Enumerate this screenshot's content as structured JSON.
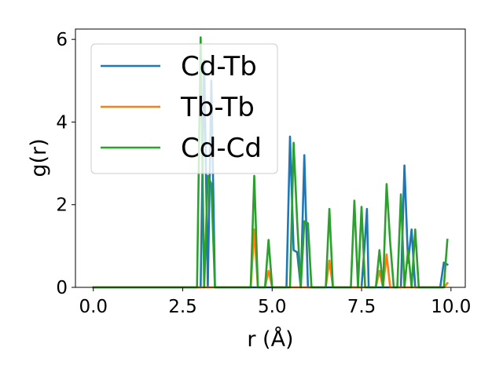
{
  "chart_data": {
    "type": "line",
    "title": "",
    "xlabel": "r (Å)",
    "ylabel": "g(r)",
    "xlim": [
      -0.5,
      10.4
    ],
    "ylim": [
      0,
      6.25
    ],
    "xticks": [
      0.0,
      2.5,
      5.0,
      7.5,
      10.0
    ],
    "xtick_labels": [
      "0.0",
      "2.5",
      "5.0",
      "7.5",
      "10.0"
    ],
    "yticks": [
      0,
      2,
      4,
      6
    ],
    "ytick_labels": [
      "0",
      "2",
      "4",
      "6"
    ],
    "grid": false,
    "legend": "top-left",
    "series": [
      {
        "name": "Cd-Tb",
        "color": "#1f77b4",
        "points": [
          [
            0.0,
            0.0
          ],
          [
            2.9,
            0.0
          ],
          [
            3.0,
            0.0
          ],
          [
            3.1,
            5.5
          ],
          [
            3.2,
            0.0
          ],
          [
            3.3,
            5.0
          ],
          [
            3.4,
            0.0
          ],
          [
            5.4,
            0.0
          ],
          [
            5.5,
            3.65
          ],
          [
            5.6,
            0.9
          ],
          [
            5.7,
            0.85
          ],
          [
            5.8,
            0.0
          ],
          [
            5.9,
            3.2
          ],
          [
            6.0,
            0.0
          ],
          [
            7.5,
            0.0
          ],
          [
            7.6,
            1.2
          ],
          [
            7.65,
            1.9
          ],
          [
            7.7,
            0.0
          ],
          [
            8.6,
            0.0
          ],
          [
            8.7,
            2.95
          ],
          [
            8.8,
            0.6
          ],
          [
            8.9,
            1.4
          ],
          [
            9.0,
            0.0
          ],
          [
            9.7,
            0.0
          ],
          [
            9.8,
            0.6
          ],
          [
            9.9,
            0.55
          ]
        ]
      },
      {
        "name": "Tb-Tb",
        "color": "#ff7f0e",
        "points": [
          [
            0.0,
            0.0
          ],
          [
            4.4,
            0.0
          ],
          [
            4.5,
            1.4
          ],
          [
            4.6,
            0.0
          ],
          [
            4.8,
            0.0
          ],
          [
            4.9,
            0.4
          ],
          [
            5.0,
            0.0
          ],
          [
            6.5,
            0.0
          ],
          [
            6.6,
            0.65
          ],
          [
            6.7,
            0.0
          ],
          [
            7.9,
            0.0
          ],
          [
            8.0,
            0.4
          ],
          [
            8.1,
            0.0
          ],
          [
            8.2,
            0.8
          ],
          [
            8.3,
            0.0
          ],
          [
            9.8,
            0.0
          ],
          [
            9.9,
            0.1
          ]
        ]
      },
      {
        "name": "Cd-Cd",
        "color": "#2ca02c",
        "points": [
          [
            0.0,
            0.0
          ],
          [
            2.9,
            0.0
          ],
          [
            3.0,
            6.05
          ],
          [
            3.1,
            0.0
          ],
          [
            3.2,
            2.7
          ],
          [
            3.3,
            2.5
          ],
          [
            3.4,
            0.0
          ],
          [
            4.4,
            0.0
          ],
          [
            4.5,
            2.7
          ],
          [
            4.6,
            0.0
          ],
          [
            4.8,
            0.0
          ],
          [
            4.9,
            1.15
          ],
          [
            5.0,
            0.0
          ],
          [
            5.5,
            0.0
          ],
          [
            5.6,
            3.5
          ],
          [
            5.7,
            1.6
          ],
          [
            5.8,
            0.0
          ],
          [
            5.9,
            1.6
          ],
          [
            6.0,
            1.55
          ],
          [
            6.1,
            0.0
          ],
          [
            6.5,
            0.0
          ],
          [
            6.6,
            1.9
          ],
          [
            6.7,
            0.0
          ],
          [
            7.2,
            0.0
          ],
          [
            7.3,
            2.1
          ],
          [
            7.4,
            0.0
          ],
          [
            7.5,
            1.95
          ],
          [
            7.6,
            0.0
          ],
          [
            7.9,
            0.0
          ],
          [
            8.0,
            0.9
          ],
          [
            8.1,
            0.0
          ],
          [
            8.2,
            2.5
          ],
          [
            8.3,
            1.1
          ],
          [
            8.4,
            0.0
          ],
          [
            8.5,
            0.0
          ],
          [
            8.6,
            2.25
          ],
          [
            8.7,
            0.0
          ],
          [
            8.8,
            0.9
          ],
          [
            8.9,
            0.0
          ],
          [
            9.0,
            1.4
          ],
          [
            9.1,
            0.0
          ],
          [
            9.8,
            0.0
          ],
          [
            9.9,
            1.15
          ]
        ]
      }
    ]
  }
}
